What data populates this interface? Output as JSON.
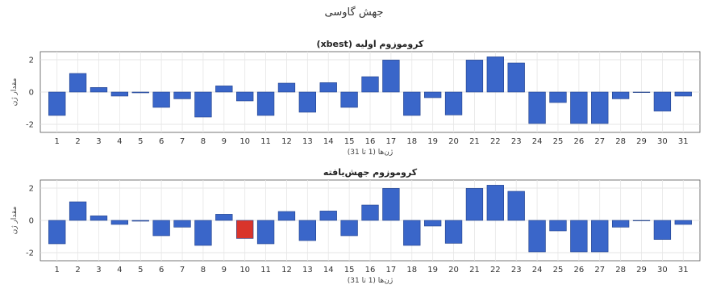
{
  "figure_title": "جهش گاوسی",
  "chart_data": [
    {
      "type": "bar",
      "title": "کروموزوم اولیه (xbest)",
      "xlabel": "ژن‌ها (1 تا 31)",
      "ylabel": "مقدار ژن",
      "ylim": [
        -2.5,
        2.5
      ],
      "yticks": [
        -2,
        0,
        2
      ],
      "grid": true,
      "categories": [
        "1",
        "2",
        "3",
        "4",
        "5",
        "6",
        "7",
        "8",
        "9",
        "10",
        "11",
        "12",
        "13",
        "14",
        "15",
        "16",
        "17",
        "18",
        "19",
        "20",
        "21",
        "22",
        "23",
        "24",
        "25",
        "26",
        "27",
        "28",
        "29",
        "30",
        "31"
      ],
      "values": [
        -1.45,
        1.15,
        0.28,
        -0.25,
        -0.05,
        -0.95,
        -0.42,
        -1.55,
        0.38,
        -0.55,
        -1.45,
        0.55,
        -1.25,
        0.58,
        -0.95,
        0.95,
        1.98,
        -1.45,
        -0.35,
        -1.42,
        1.98,
        2.18,
        1.8,
        -1.95,
        -0.65,
        -1.95,
        -1.95,
        -0.42,
        0,
        -1.18,
        -0.25
      ],
      "bar_color": "#3a66c9"
    },
    {
      "type": "bar",
      "title": "کروموزوم جهش‌یافته",
      "xlabel": "ژن‌ها (1 تا 31)",
      "ylabel": "مقدار ژن",
      "ylim": [
        -2.5,
        2.5
      ],
      "yticks": [
        -2,
        0,
        2
      ],
      "grid": true,
      "categories": [
        "1",
        "2",
        "3",
        "4",
        "5",
        "6",
        "7",
        "8",
        "9",
        "10",
        "11",
        "12",
        "13",
        "14",
        "15",
        "16",
        "17",
        "18",
        "19",
        "20",
        "21",
        "22",
        "23",
        "24",
        "25",
        "26",
        "27",
        "28",
        "29",
        "30",
        "31"
      ],
      "values": [
        -1.45,
        1.15,
        0.28,
        -0.25,
        -0.05,
        -0.95,
        -0.42,
        -1.55,
        0.38,
        -1.12,
        -1.45,
        0.55,
        -1.25,
        0.58,
        -0.95,
        0.95,
        1.98,
        -1.55,
        -0.35,
        -1.42,
        1.98,
        2.18,
        1.8,
        -1.95,
        -0.65,
        -1.95,
        -1.95,
        -0.42,
        0,
        -1.18,
        -0.25
      ],
      "bar_color": "#3a66c9",
      "highlight_index": 9,
      "highlight_color": "#d9342b"
    }
  ]
}
